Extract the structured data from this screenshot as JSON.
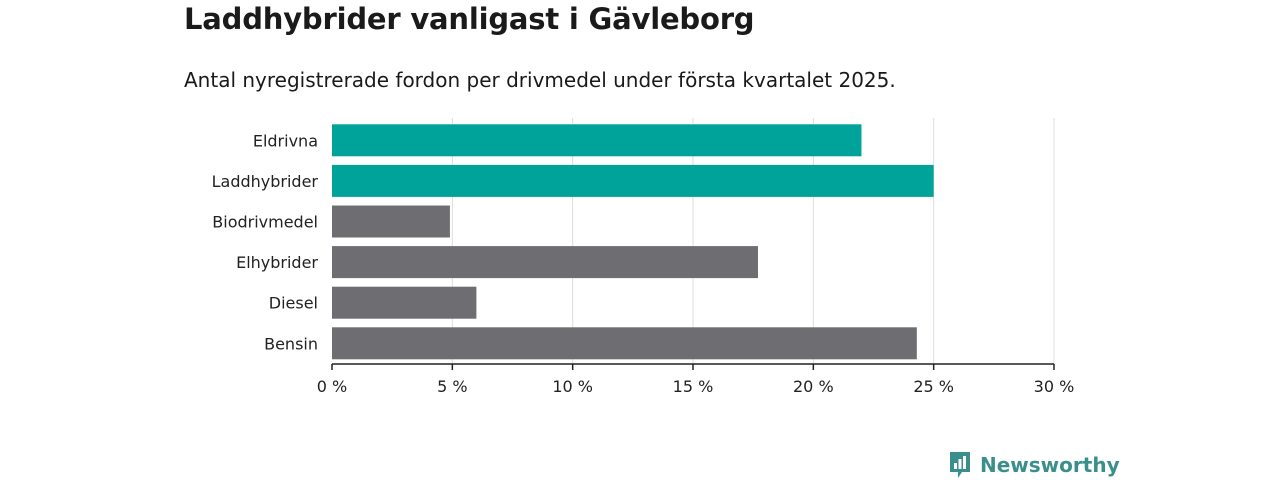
{
  "title": "Laddhybrider vanligast i Gävleborg",
  "subtitle": "Antal nyregistrerade fordon per drivmedel under första kvartalet 2025.",
  "brand": {
    "name": "Newsworthy",
    "color": "#3a8f8c"
  },
  "colors": {
    "highlight": "#00a39a",
    "default": "#6e6d72"
  },
  "chart_data": {
    "type": "bar",
    "orientation": "horizontal",
    "title": "Laddhybrider vanligast i Gävleborg",
    "subtitle": "Antal nyregistrerade fordon per drivmedel under första kvartalet 2025.",
    "categories": [
      "Eldrivna",
      "Laddhybrider",
      "Biodrivmedel",
      "Elhybrider",
      "Diesel",
      "Bensin"
    ],
    "values": [
      22.0,
      25.0,
      4.9,
      17.7,
      6.0,
      24.3
    ],
    "highlighted": [
      "Eldrivna",
      "Laddhybrider"
    ],
    "xlim": [
      0,
      30
    ],
    "xticks": [
      0,
      5,
      10,
      15,
      20,
      25,
      30
    ],
    "xtick_labels": [
      "0 %",
      "5 %",
      "10 %",
      "15 %",
      "20 %",
      "25 %",
      "30 %"
    ],
    "xlabel": "",
    "ylabel": "",
    "grid": "vertical"
  }
}
